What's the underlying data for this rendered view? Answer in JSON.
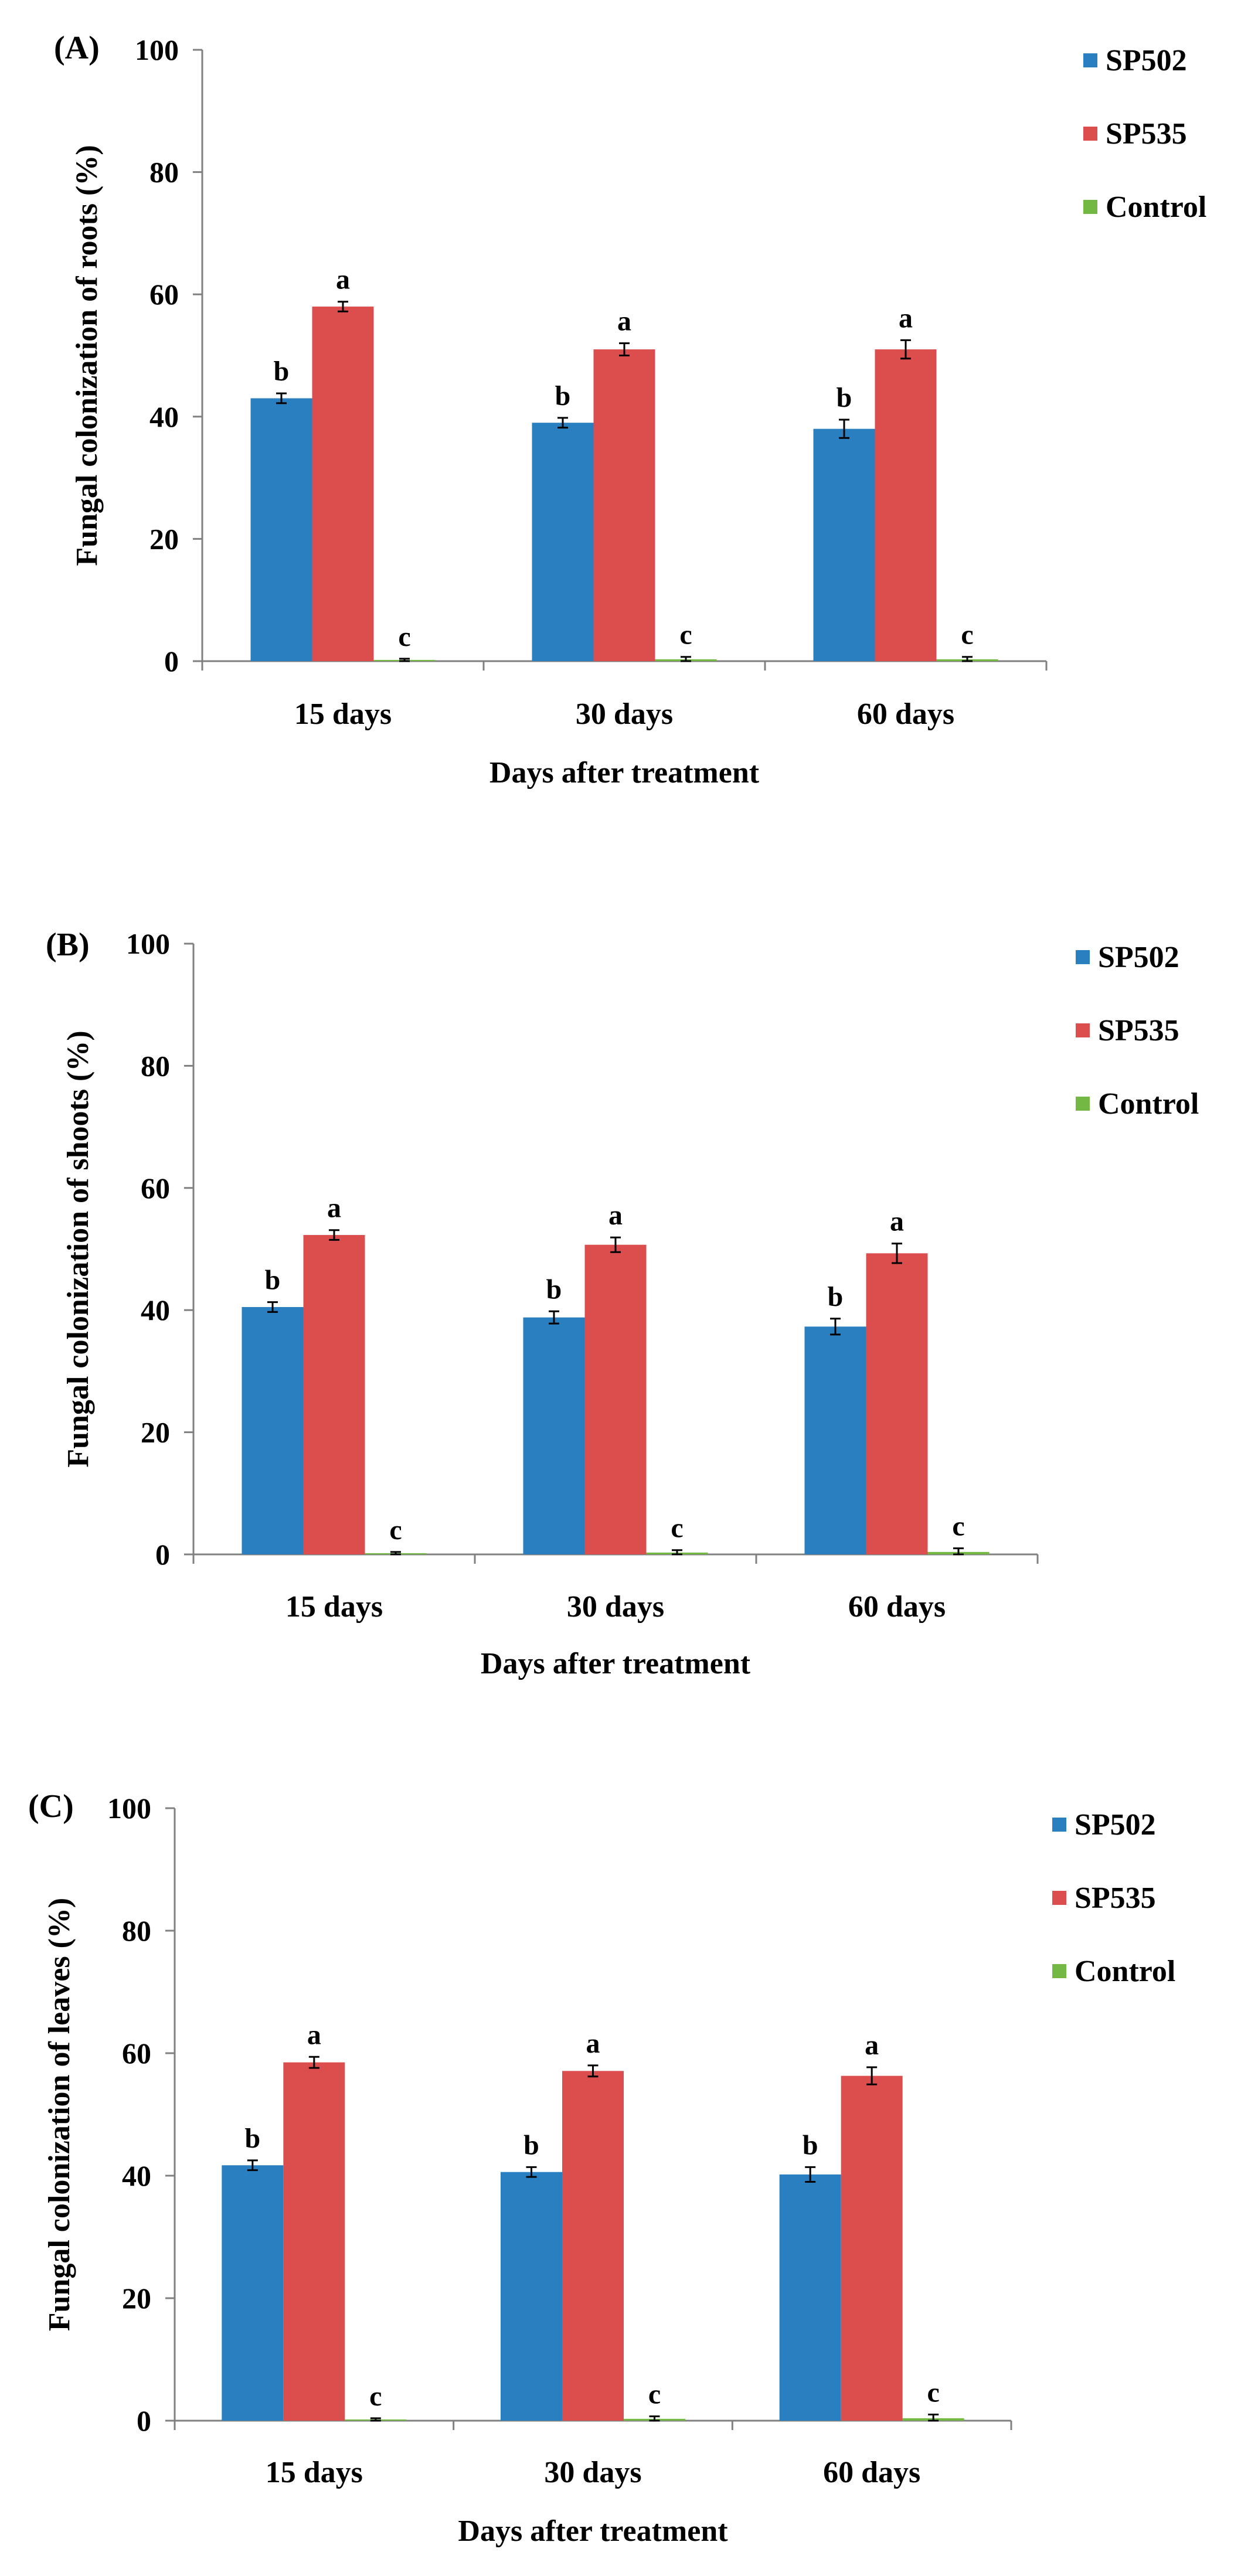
{
  "colors": {
    "SP502": "#2a7fc1",
    "SP535": "#dc4e4e",
    "Control": "#72b843",
    "axis": "#808080"
  },
  "chart_data": [
    {
      "type": "bar",
      "panel_label": "(A)",
      "categories": [
        "15 days",
        "30 days",
        "60 days"
      ],
      "ylabel": "Fungal colonization of roots (%)",
      "xlabel": "Days after  treatment",
      "ylim": [
        0,
        100
      ],
      "yticks": [
        "0",
        "20",
        "40",
        "60",
        "80",
        "100"
      ],
      "legend_position": "top-right",
      "series": [
        {
          "name": "SP502",
          "values": [
            43,
            39,
            38
          ],
          "errors": [
            0.8,
            0.8,
            1.5
          ],
          "letters": [
            "b",
            "b",
            "b"
          ]
        },
        {
          "name": "SP535",
          "values": [
            58,
            51,
            51
          ],
          "errors": [
            0.8,
            1.0,
            1.5
          ],
          "letters": [
            "a",
            "a",
            "a"
          ]
        },
        {
          "name": "Control",
          "values": [
            0.2,
            0.3,
            0.3
          ],
          "errors": [
            0.2,
            0.4,
            0.4
          ],
          "letters": [
            "c",
            "c",
            "c"
          ]
        }
      ]
    },
    {
      "type": "bar",
      "panel_label": "(B)",
      "categories": [
        "15 days",
        "30 days",
        "60 days"
      ],
      "ylabel": "Fungal colonization of shoots (%)",
      "xlabel": "Days after  treatment",
      "ylim": [
        0,
        100
      ],
      "yticks": [
        "0",
        "20",
        "40",
        "60",
        "80",
        "100"
      ],
      "legend_position": "top-right",
      "series": [
        {
          "name": "SP502",
          "values": [
            40.5,
            38.8,
            37.3
          ],
          "errors": [
            0.8,
            1.0,
            1.3
          ],
          "letters": [
            "b",
            "b",
            "b"
          ]
        },
        {
          "name": "SP535",
          "values": [
            52.3,
            50.7,
            49.3
          ],
          "errors": [
            0.8,
            1.2,
            1.6
          ],
          "letters": [
            "a",
            "a",
            "a"
          ]
        },
        {
          "name": "Control",
          "values": [
            0.2,
            0.3,
            0.4
          ],
          "errors": [
            0.2,
            0.4,
            0.6
          ],
          "letters": [
            "c",
            "c",
            "c"
          ]
        }
      ]
    },
    {
      "type": "bar",
      "panel_label": "(C)",
      "categories": [
        "15 days",
        "30 days",
        "60 days"
      ],
      "ylabel": "Fungal colonization of leaves (%)",
      "xlabel": "Days after  treatment",
      "ylim": [
        0,
        100
      ],
      "yticks": [
        "0",
        "20",
        "40",
        "60",
        "80",
        "100"
      ],
      "legend_position": "top-right",
      "series": [
        {
          "name": "SP502",
          "values": [
            41.7,
            40.6,
            40.2
          ],
          "errors": [
            0.8,
            0.8,
            1.2
          ],
          "letters": [
            "b",
            "b",
            "b"
          ]
        },
        {
          "name": "SP535",
          "values": [
            58.5,
            57.1,
            56.3
          ],
          "errors": [
            0.9,
            0.9,
            1.4
          ],
          "letters": [
            "a",
            "a",
            "a"
          ]
        },
        {
          "name": "Control",
          "values": [
            0.2,
            0.3,
            0.4
          ],
          "errors": [
            0.2,
            0.4,
            0.6
          ],
          "letters": [
            "c",
            "c",
            "c"
          ]
        }
      ]
    }
  ]
}
